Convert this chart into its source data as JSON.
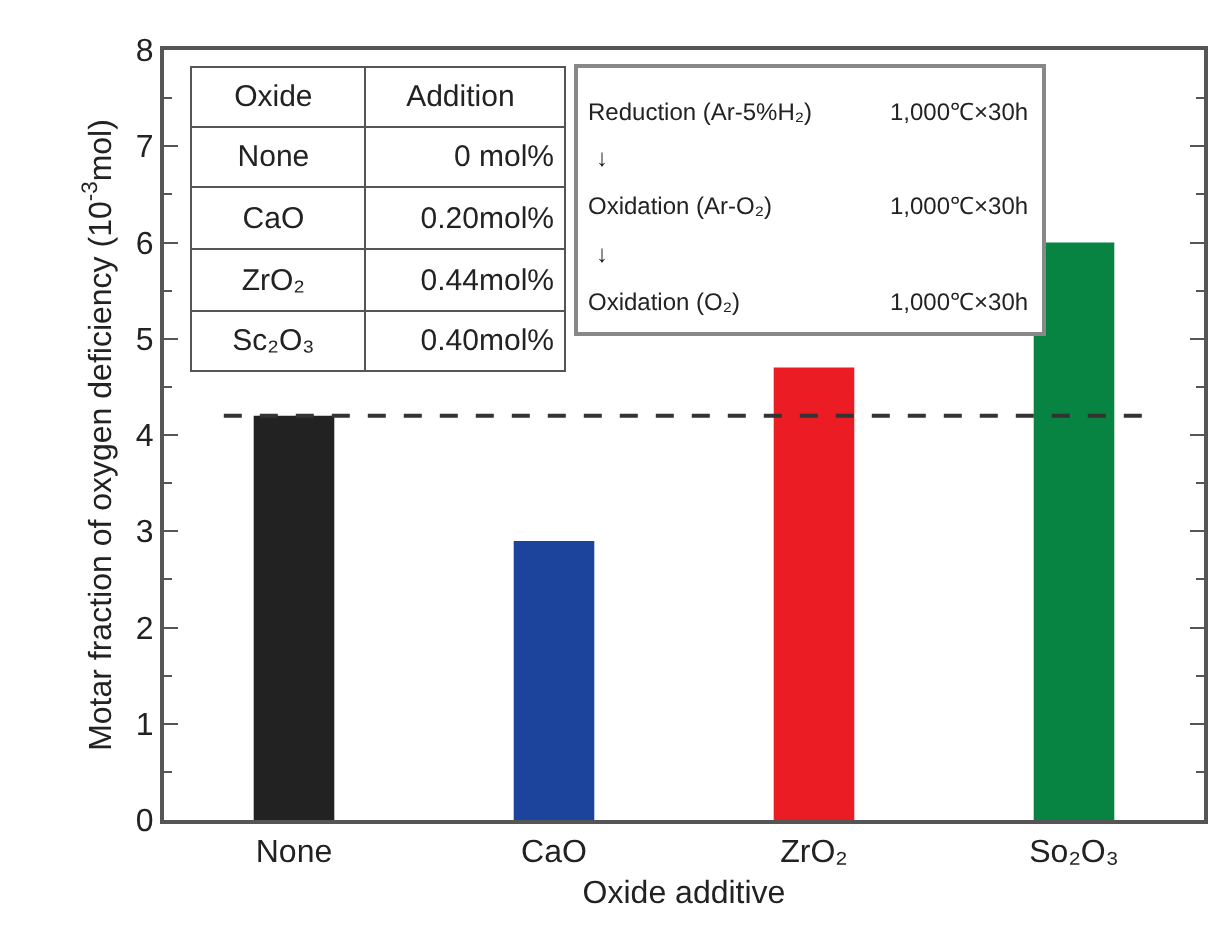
{
  "chart_data": {
    "type": "bar",
    "xlabel": "Oxide additive",
    "ylabel": "Motar fraction of oxygen deficiency (10$^{-3}$mol)",
    "categories": [
      "None",
      "CaO",
      "ZrO₂",
      "So₂O₃"
    ],
    "values": [
      4.2,
      2.9,
      4.7,
      6.0
    ],
    "colors": [
      "#222222",
      "#1c449c",
      "#ec1c24",
      "#078442"
    ],
    "ylim": [
      0,
      8
    ],
    "yticks": [
      0,
      1,
      2,
      3,
      4,
      5,
      6,
      7,
      8
    ],
    "grid": false,
    "ref_lines": [
      {
        "axis": "y",
        "value": 4.2,
        "color": "#333333",
        "line_style": "dashed"
      }
    ],
    "annotations": [
      "Oxide",
      "Addition",
      "None",
      "0  mol%",
      "CaO",
      "0.20mol%",
      "ZrO₂",
      "0.44mol%",
      "Sc₂O₃",
      "0.40mol%",
      "Reduction (Ar-5%H₂)",
      "1,000℃×30h",
      "↓",
      "Oxidation (Ar-O₂)",
      "1,000℃×30h",
      "↓",
      "Oxidation (O₂)",
      "1,000℃×30h"
    ]
  }
}
